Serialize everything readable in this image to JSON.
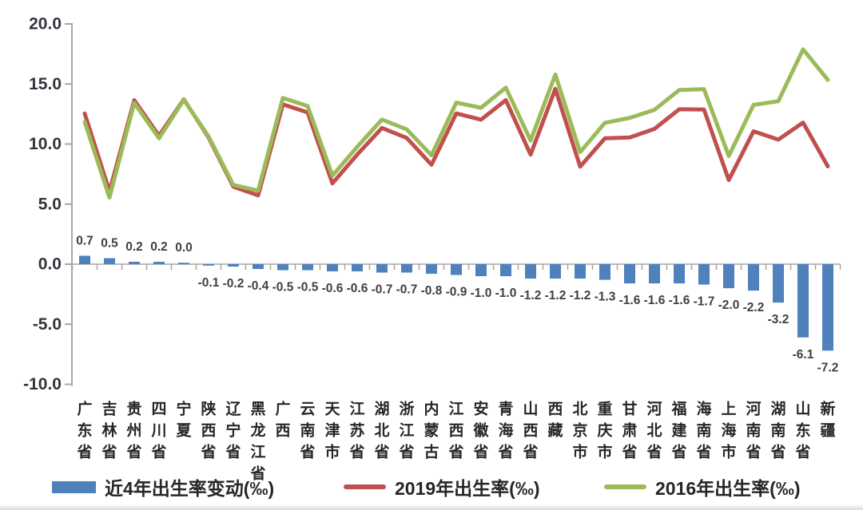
{
  "chart_data": {
    "type": "combo",
    "title": "",
    "categories": [
      "广东省",
      "吉林省",
      "贵州省",
      "四川省",
      "宁夏",
      "陕西省",
      "辽宁省",
      "黑龙江省",
      "广西",
      "云南省",
      "天津市",
      "江苏省",
      "湖北省",
      "浙江省",
      "内蒙古",
      "江西省",
      "安徽省",
      "青海省",
      "山西省",
      "西藏",
      "北京市",
      "重庆市",
      "甘肃省",
      "河北省",
      "福建省",
      "海南省",
      "上海市",
      "河南省",
      "湖南省",
      "山东省",
      "新疆"
    ],
    "series": [
      {
        "name": "近4年出生率变动(‰)",
        "type": "bar",
        "color": "#4F81BD",
        "data_labels": true,
        "values": [
          0.7,
          0.5,
          0.2,
          0.2,
          0.0,
          -0.1,
          -0.2,
          -0.4,
          -0.5,
          -0.5,
          -0.6,
          -0.6,
          -0.7,
          -0.7,
          -0.8,
          -0.9,
          -1.0,
          -1.0,
          -1.2,
          -1.2,
          -1.2,
          -1.3,
          -1.6,
          -1.6,
          -1.6,
          -1.7,
          -2.0,
          -2.2,
          -3.2,
          -6.1,
          -7.2
        ]
      },
      {
        "name": "2019年出生率(‰)",
        "type": "line",
        "color": "#C0504D",
        "data_labels": false,
        "values": [
          12.54,
          6.05,
          13.65,
          10.7,
          13.72,
          10.55,
          6.45,
          5.73,
          13.31,
          12.63,
          6.73,
          9.12,
          11.34,
          10.51,
          8.28,
          12.55,
          12.03,
          13.66,
          9.12,
          14.6,
          8.12,
          10.48,
          10.55,
          11.26,
          12.9,
          12.88,
          7.0,
          11.06,
          10.37,
          11.79,
          8.14
        ]
      },
      {
        "name": "2016年出生率(‰)",
        "type": "line",
        "color": "#9BBB59",
        "data_labels": false,
        "values": [
          11.85,
          5.55,
          13.43,
          10.48,
          13.69,
          10.64,
          6.6,
          6.12,
          13.84,
          13.16,
          7.37,
          9.76,
          12.04,
          11.22,
          9.06,
          13.45,
          13.02,
          14.7,
          10.29,
          15.79,
          9.32,
          11.77,
          12.18,
          12.85,
          14.5,
          14.57,
          9.0,
          13.26,
          13.57,
          17.89,
          15.34
        ]
      }
    ],
    "y_axis": {
      "min": -10.0,
      "max": 20.0,
      "tick_step": 5.0,
      "tick_labels": [
        "20.0",
        "15.0",
        "10.0",
        "5.0",
        "0.0",
        "-5.0",
        "-10.0"
      ]
    },
    "x_axis": {
      "label_orientation": "vertical"
    },
    "legend_position": "bottom",
    "gridlines": false,
    "axis_color": "#A6A6A6"
  }
}
